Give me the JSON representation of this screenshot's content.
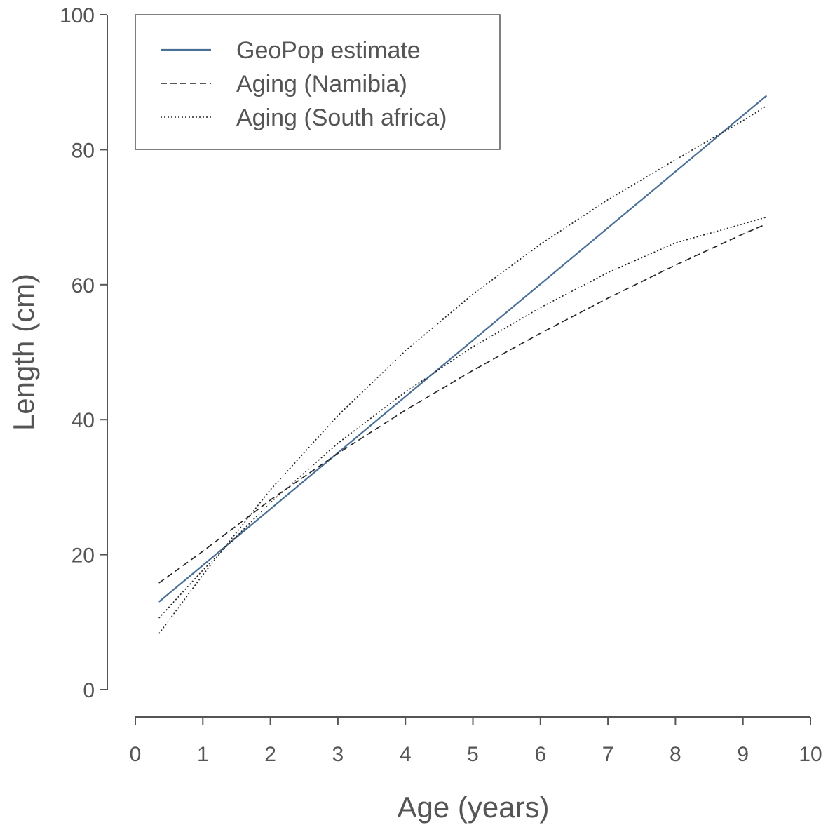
{
  "chart_data": {
    "type": "line",
    "xlabel": "Age (years)",
    "ylabel": "Length (cm)",
    "xlim": [
      0,
      10
    ],
    "ylim": [
      0,
      100
    ],
    "x_ticks": [
      "0",
      "1",
      "2",
      "3",
      "4",
      "5",
      "6",
      "7",
      "8",
      "9",
      "10"
    ],
    "y_ticks": [
      "0",
      "20",
      "40",
      "60",
      "80",
      "100"
    ],
    "grid": false,
    "legend_position": "top-left",
    "series": [
      {
        "name": "GeoPop estimate",
        "style": "solid",
        "color": "#4a6f96",
        "x": [
          0.35,
          9.35
        ],
        "y": [
          13.0,
          88.0
        ]
      },
      {
        "name": "Aging (Namibia)",
        "style": "dashed",
        "color": "#222222",
        "x": [
          0.35,
          1,
          2,
          3,
          4,
          5,
          6,
          7,
          8,
          9,
          9.35
        ],
        "y": [
          15.8,
          20.5,
          28.1,
          35.0,
          41.4,
          47.3,
          52.8,
          58.0,
          62.9,
          67.5,
          69.0
        ]
      },
      {
        "name": "Aging (South africa)",
        "style": "dotted",
        "color": "#222222",
        "x": [
          0.35,
          1,
          2,
          3,
          4,
          5,
          6,
          7,
          8,
          9,
          9.35
        ],
        "y": [
          10.6,
          17.7,
          27.7,
          36.5,
          44.1,
          50.8,
          56.6,
          61.8,
          66.2,
          69.0,
          70.0
        ]
      },
      {
        "style": "dotted",
        "color": "#222222",
        "x": [
          0.35,
          1,
          2,
          3,
          4,
          5,
          6,
          7,
          8,
          9,
          9.35
        ],
        "y": [
          8.3,
          17.0,
          29.6,
          40.6,
          50.2,
          58.6,
          66.0,
          72.6,
          78.5,
          84.3,
          86.5
        ]
      }
    ]
  }
}
